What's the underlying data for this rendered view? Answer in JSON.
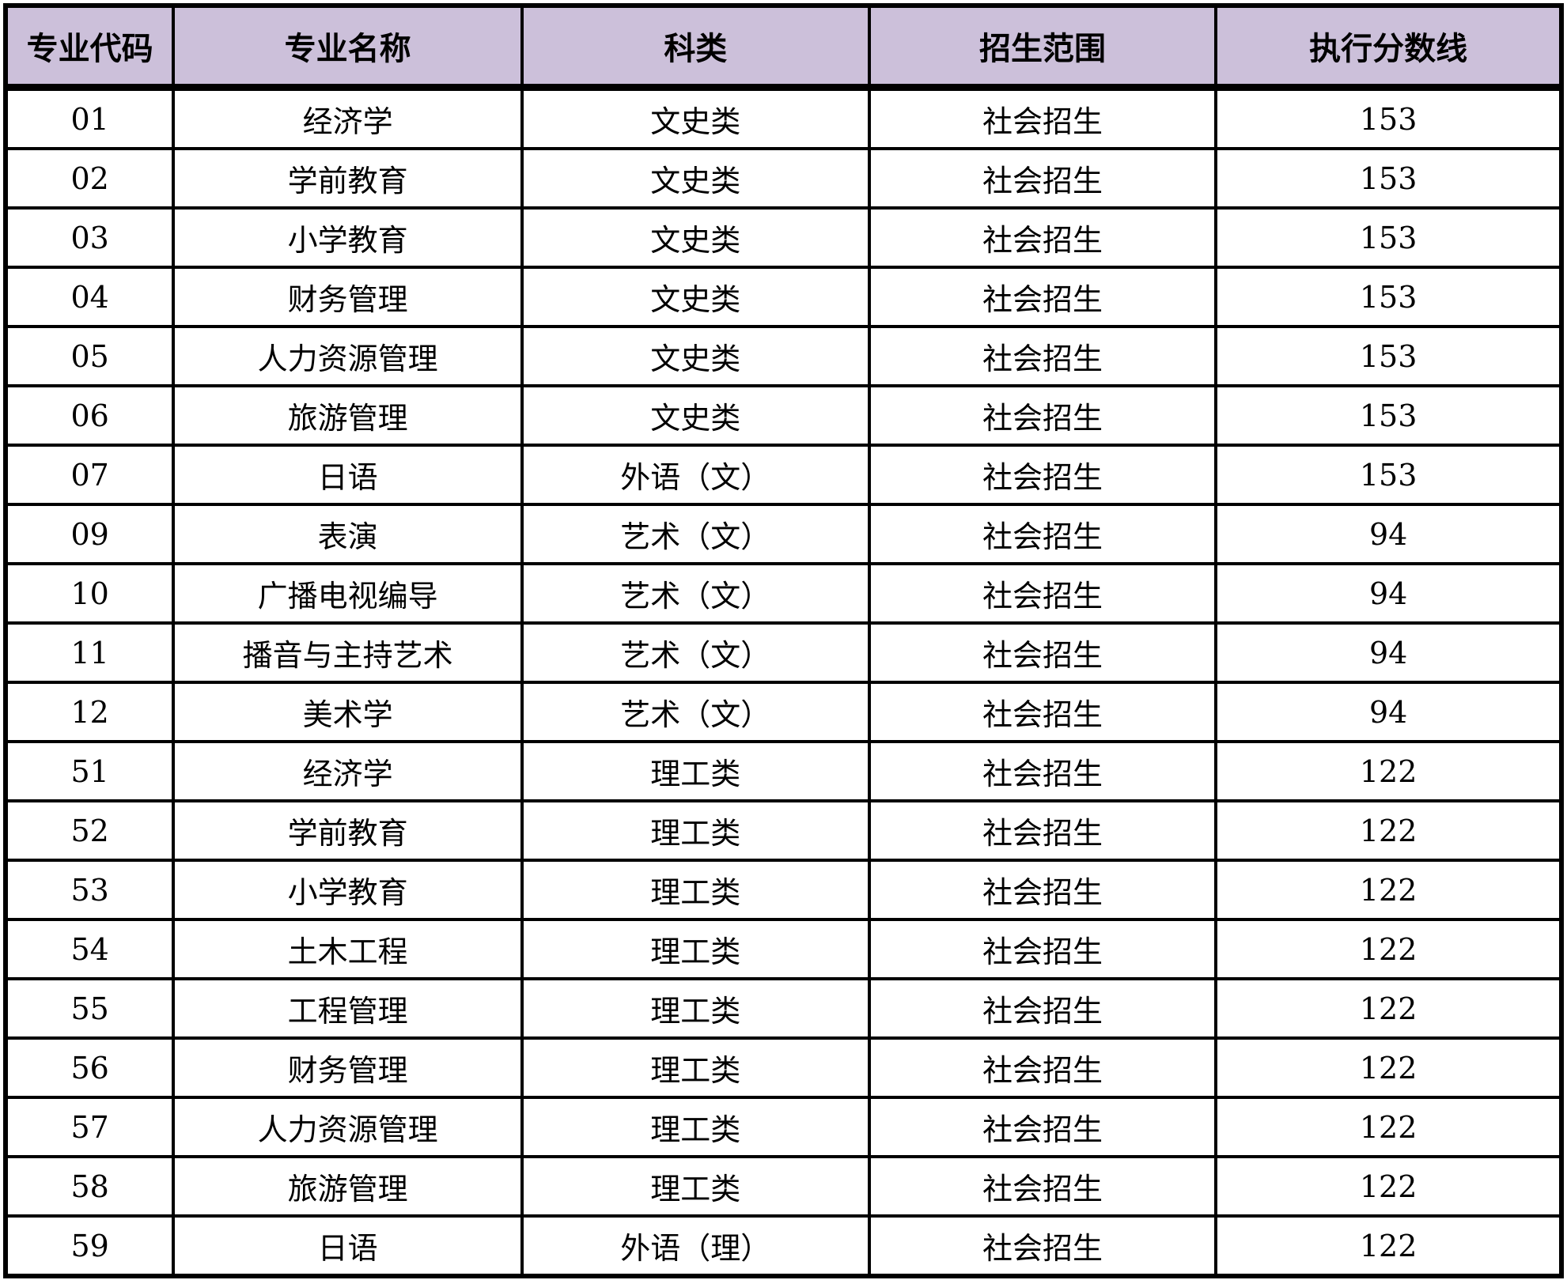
{
  "columns": [
    "专业代码",
    "专业名称",
    "科类",
    "招生范围",
    "执行分数线"
  ],
  "rows": [
    [
      "01",
      "经济学",
      "文史类",
      "社会招生",
      "153"
    ],
    [
      "02",
      "学前教育",
      "文史类",
      "社会招生",
      "153"
    ],
    [
      "03",
      "小学教育",
      "文史类",
      "社会招生",
      "153"
    ],
    [
      "04",
      "财务管理",
      "文史类",
      "社会招生",
      "153"
    ],
    [
      "05",
      "人力资源管理",
      "文史类",
      "社会招生",
      "153"
    ],
    [
      "06",
      "旅游管理",
      "文史类",
      "社会招生",
      "153"
    ],
    [
      "07",
      "日语",
      "外语（文）",
      "社会招生",
      "153"
    ],
    [
      "09",
      "表演",
      "艺术（文）",
      "社会招生",
      "94"
    ],
    [
      "10",
      "广播电视编导",
      "艺术（文）",
      "社会招生",
      "94"
    ],
    [
      "11",
      "播音与主持艺术",
      "艺术（文）",
      "社会招生",
      "94"
    ],
    [
      "12",
      "美术学",
      "艺术（文）",
      "社会招生",
      "94"
    ],
    [
      "51",
      "经济学",
      "理工类",
      "社会招生",
      "122"
    ],
    [
      "52",
      "学前教育",
      "理工类",
      "社会招生",
      "122"
    ],
    [
      "53",
      "小学教育",
      "理工类",
      "社会招生",
      "122"
    ],
    [
      "54",
      "土木工程",
      "理工类",
      "社会招生",
      "122"
    ],
    [
      "55",
      "工程管理",
      "理工类",
      "社会招生",
      "122"
    ],
    [
      "56",
      "财务管理",
      "理工类",
      "社会招生",
      "122"
    ],
    [
      "57",
      "人力资源管理",
      "理工类",
      "社会招生",
      "122"
    ],
    [
      "58",
      "旅游管理",
      "理工类",
      "社会招生",
      "122"
    ],
    [
      "59",
      "日语",
      "外语（理）",
      "社会招生",
      "122"
    ]
  ],
  "colors": {
    "header_bg": "#ccc0da",
    "border": "#000000"
  }
}
